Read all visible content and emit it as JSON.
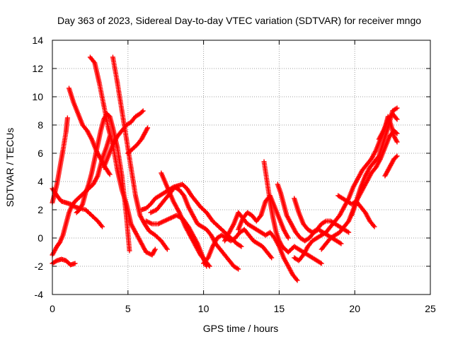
{
  "chart_data": {
    "type": "scatter",
    "title": "Day 363 of 2023, Sidereal Day-to-day VTEC variation (SDTVAR) for receiver mngo",
    "xlabel": "GPS time / hours",
    "ylabel": "SDTVAR / TECUs",
    "xlim": [
      0,
      25
    ],
    "ylim": [
      -4,
      14
    ],
    "xticks": [
      0,
      5,
      10,
      15,
      20,
      25
    ],
    "yticks": [
      -4,
      -2,
      0,
      2,
      4,
      6,
      8,
      10,
      12,
      14
    ],
    "grid": true,
    "marker": "+",
    "color": "#ff0000",
    "series": [
      {
        "name": "s1",
        "x": [
          0.0,
          0.3,
          0.6,
          0.9,
          1.2,
          1.5,
          1.8,
          2.2,
          2.6,
          3.0,
          3.3
        ],
        "y": [
          3.5,
          3.0,
          2.6,
          2.5,
          2.4,
          2.2,
          2.1,
          2.0,
          1.6,
          1.2,
          0.8
        ]
      },
      {
        "name": "s2",
        "x": [
          0.0,
          0.3,
          0.6,
          0.9,
          1.2,
          1.5
        ],
        "y": [
          -1.8,
          -1.6,
          -1.5,
          -1.6,
          -1.9,
          -1.8
        ]
      },
      {
        "name": "s3",
        "x": [
          0.0,
          0.3,
          0.5,
          0.7,
          0.9,
          1.1,
          1.3,
          1.5,
          1.8,
          2.1,
          2.4,
          2.7,
          3.0,
          3.3,
          3.6,
          3.8
        ],
        "y": [
          -1.2,
          -0.6,
          -0.3,
          0.2,
          1.0,
          1.8,
          2.3,
          2.6,
          2.9,
          3.2,
          3.5,
          3.8,
          4.4,
          5.6,
          6.5,
          7.2
        ]
      },
      {
        "name": "s4",
        "x": [
          0.0,
          0.3,
          0.5,
          0.7,
          0.9,
          1.0
        ],
        "y": [
          2.5,
          3.8,
          5.0,
          6.2,
          7.5,
          8.5
        ]
      },
      {
        "name": "s5",
        "x": [
          1.1,
          1.4,
          1.7,
          2.0,
          2.3,
          2.6,
          2.9,
          3.2,
          3.5,
          3.8
        ],
        "y": [
          10.6,
          9.6,
          8.8,
          8.0,
          7.6,
          7.0,
          6.2,
          5.6,
          5.0,
          4.5
        ]
      },
      {
        "name": "s6",
        "x": [
          1.6,
          1.8,
          2.0,
          2.2,
          2.4,
          2.6,
          2.8,
          3.0,
          3.2,
          3.4,
          3.6,
          3.8,
          4.0,
          4.3,
          4.6,
          4.9,
          5.1
        ],
        "y": [
          1.8,
          2.0,
          2.4,
          3.2,
          3.8,
          4.6,
          5.6,
          6.6,
          7.6,
          8.4,
          8.8,
          8.6,
          7.8,
          6.4,
          4.4,
          1.5,
          -0.9
        ]
      },
      {
        "name": "s7",
        "x": [
          2.5,
          2.8,
          3.1,
          3.4,
          3.7,
          4.0,
          4.3,
          4.6,
          4.9,
          5.2,
          5.5,
          5.8,
          6.2,
          6.6,
          6.8
        ],
        "y": [
          12.8,
          12.4,
          11.0,
          9.4,
          7.8,
          6.6,
          4.8,
          3.4,
          2.4,
          1.0,
          0.4,
          -0.2,
          -1.0,
          -1.2,
          -0.8
        ]
      },
      {
        "name": "s8",
        "x": [
          4.0,
          4.3,
          4.6,
          4.9,
          5.2,
          5.5,
          5.8,
          6.1,
          6.4,
          6.8,
          7.2,
          7.6
        ],
        "y": [
          12.8,
          11.0,
          9.0,
          7.0,
          5.0,
          3.0,
          1.6,
          1.0,
          0.5,
          0.2,
          -0.2,
          -0.8
        ]
      },
      {
        "name": "s9",
        "x": [
          3.4,
          3.7,
          4.0,
          4.3,
          4.6,
          4.9,
          5.2,
          5.5,
          5.8,
          6.0
        ],
        "y": [
          5.0,
          5.8,
          6.6,
          7.2,
          7.6,
          8.0,
          8.2,
          8.6,
          8.8,
          9.0
        ]
      },
      {
        "name": "s10",
        "x": [
          5.0,
          5.3,
          5.6,
          5.9,
          6.1,
          6.3
        ],
        "y": [
          6.0,
          6.3,
          6.6,
          7.0,
          7.4,
          7.8
        ]
      },
      {
        "name": "s11",
        "x": [
          5.9,
          6.2,
          6.5,
          6.8,
          7.1,
          7.4,
          7.7,
          8.0,
          8.3,
          8.6,
          8.9,
          9.2,
          9.5,
          9.8,
          10.2,
          10.6,
          11.0,
          11.4,
          11.8,
          12.2,
          12.5
        ],
        "y": [
          2.0,
          2.1,
          2.4,
          2.8,
          3.0,
          3.2,
          3.4,
          3.6,
          3.7,
          3.8,
          3.5,
          3.0,
          2.6,
          2.2,
          1.8,
          1.2,
          0.8,
          0.4,
          0.0,
          -0.4,
          -0.6
        ]
      },
      {
        "name": "s12",
        "x": [
          6.5,
          6.9,
          7.2,
          7.5,
          7.8,
          8.1,
          8.4,
          8.7,
          9.0,
          9.3,
          9.6,
          9.9,
          10.2,
          10.5,
          10.8,
          11.1,
          11.4,
          11.7,
          12.0,
          12.3
        ],
        "y": [
          1.8,
          2.0,
          2.4,
          2.8,
          3.2,
          3.6,
          3.4,
          3.0,
          2.2,
          1.6,
          1.0,
          0.8,
          0.6,
          0.2,
          -0.4,
          -0.8,
          -1.2,
          -1.6,
          -2.0,
          -2.2
        ]
      },
      {
        "name": "s13",
        "x": [
          6.2,
          6.6,
          7.0,
          7.4,
          7.8,
          8.2,
          8.6,
          9.0,
          9.3,
          9.6,
          9.9,
          10.2
        ],
        "y": [
          1.2,
          1.0,
          1.0,
          1.2,
          1.4,
          1.6,
          1.4,
          0.8,
          0.2,
          -0.4,
          -1.2,
          -2.0
        ]
      },
      {
        "name": "s14",
        "x": [
          7.2,
          7.6,
          8.0,
          8.4,
          8.8,
          9.2,
          9.5,
          9.8,
          10.1,
          10.4
        ],
        "y": [
          4.6,
          3.6,
          2.6,
          1.8,
          0.8,
          0.0,
          -0.6,
          -1.2,
          -1.6,
          -2.0
        ]
      },
      {
        "name": "s15",
        "x": [
          10.0,
          10.3,
          10.6,
          10.9,
          11.2,
          11.5,
          11.8,
          12.1,
          12.4,
          12.7,
          13.0,
          13.3,
          13.6,
          13.9,
          14.2,
          14.5
        ],
        "y": [
          -1.8,
          -1.4,
          -0.6,
          0.0,
          0.2,
          0.0,
          -0.2,
          0.0,
          0.4,
          0.6,
          0.2,
          -0.2,
          -0.4,
          -0.6,
          -1.0,
          -1.4
        ]
      },
      {
        "name": "s16",
        "x": [
          11.4,
          11.7,
          12.0,
          12.3,
          12.6,
          12.9,
          13.2,
          13.5,
          13.8,
          14.1,
          14.4,
          14.7,
          15.0,
          15.3,
          15.6,
          15.9,
          16.2
        ],
        "y": [
          -0.2,
          0.4,
          1.0,
          1.8,
          1.4,
          1.0,
          0.8,
          0.6,
          0.4,
          0.2,
          0.4,
          0.0,
          -0.6,
          -1.4,
          -2.0,
          -2.6,
          -3.0
        ]
      },
      {
        "name": "s17",
        "x": [
          12.3,
          12.6,
          12.9,
          13.2,
          13.5,
          13.8,
          14.1,
          14.4,
          14.7,
          15.0,
          15.3,
          15.6
        ],
        "y": [
          0.6,
          1.4,
          1.8,
          1.6,
          1.2,
          1.6,
          2.6,
          3.0,
          2.2,
          1.4,
          0.6,
          0.0
        ]
      },
      {
        "name": "s18",
        "x": [
          14.0,
          14.2,
          14.4,
          14.6,
          14.8,
          15.0,
          15.2,
          15.4,
          15.6,
          15.8,
          16.0,
          16.3,
          16.6,
          16.9,
          17.2,
          17.5,
          17.8
        ],
        "y": [
          5.4,
          4.0,
          2.6,
          1.4,
          0.4,
          -0.2,
          -0.6,
          -0.8,
          -1.0,
          -0.8,
          -0.6,
          -0.8,
          -1.0,
          -1.2,
          -1.4,
          -1.6,
          -1.8
        ]
      },
      {
        "name": "s19",
        "x": [
          14.9,
          15.1,
          15.3,
          15.5,
          15.8,
          16.1,
          16.4,
          16.7,
          17.0,
          17.3,
          17.6,
          17.9,
          18.2,
          18.5,
          18.8,
          19.1
        ],
        "y": [
          3.8,
          3.2,
          2.4,
          1.6,
          1.0,
          0.4,
          0.0,
          -0.2,
          0.0,
          0.4,
          0.6,
          0.4,
          0.2,
          0.0,
          -0.2,
          -0.4
        ]
      },
      {
        "name": "s20",
        "x": [
          16.0,
          16.3,
          16.6,
          16.9,
          17.2,
          17.5,
          17.8,
          18.1,
          18.4,
          18.7,
          19.0,
          19.3,
          19.6
        ],
        "y": [
          2.8,
          1.8,
          1.0,
          0.6,
          0.4,
          0.6,
          1.0,
          1.2,
          1.2,
          1.0,
          0.8,
          0.6,
          0.4
        ]
      },
      {
        "name": "s21",
        "x": [
          16.0,
          16.3,
          16.6,
          16.9,
          17.2,
          17.5,
          17.8,
          18.1,
          18.4,
          18.7,
          19.0,
          19.3,
          19.6,
          19.9,
          20.2,
          20.5,
          20.8,
          21.1,
          21.4,
          21.7,
          22.0,
          22.2,
          22.4,
          22.6,
          22.8
        ],
        "y": [
          -1.4,
          -1.6,
          -1.2,
          -0.6,
          -0.2,
          0.0,
          0.2,
          0.4,
          0.8,
          1.2,
          1.6,
          2.2,
          2.8,
          3.6,
          4.2,
          4.8,
          5.2,
          5.6,
          6.2,
          7.0,
          7.8,
          8.6,
          8.0,
          7.2,
          6.8
        ]
      },
      {
        "name": "s22",
        "x": [
          17.8,
          18.1,
          18.4,
          18.7,
          19.0,
          19.3,
          19.6,
          19.9,
          20.2,
          20.5,
          20.8,
          21.1,
          21.4,
          21.7,
          22.0,
          22.3,
          22.6,
          22.8
        ],
        "y": [
          -0.8,
          -0.4,
          0.0,
          0.2,
          0.4,
          0.8,
          1.2,
          2.0,
          2.8,
          3.4,
          4.0,
          4.6,
          5.0,
          5.6,
          6.4,
          7.2,
          7.6,
          7.4
        ]
      },
      {
        "name": "s23",
        "x": [
          18.9,
          19.2,
          19.5,
          19.8,
          20.1,
          20.4,
          20.7,
          21.0,
          21.3
        ],
        "y": [
          3.0,
          2.8,
          2.6,
          2.4,
          2.6,
          2.2,
          1.8,
          1.2,
          0.8
        ]
      },
      {
        "name": "s24",
        "x": [
          19.8,
          20.1,
          20.4,
          20.7,
          21.0,
          21.3,
          21.6,
          21.9,
          22.2,
          22.5,
          22.8
        ],
        "y": [
          1.6,
          2.6,
          3.6,
          4.4,
          5.0,
          5.4,
          5.8,
          6.8,
          7.8,
          9.0,
          9.2
        ]
      },
      {
        "name": "s25",
        "x": [
          21.6,
          21.9,
          22.2,
          22.5,
          22.8
        ],
        "y": [
          7.0,
          7.6,
          8.4,
          8.8,
          8.4
        ]
      },
      {
        "name": "s26",
        "x": [
          22.0,
          22.2,
          22.4,
          22.6,
          22.8
        ],
        "y": [
          4.4,
          4.8,
          5.2,
          5.6,
          5.8
        ]
      }
    ]
  }
}
